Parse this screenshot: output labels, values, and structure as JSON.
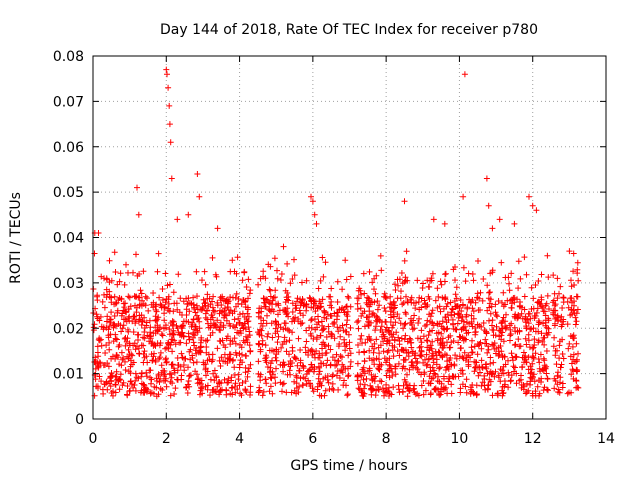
{
  "chart_data": {
    "type": "scatter",
    "title": "Day 144 of 2018, Rate Of TEC Index for receiver p780",
    "xlabel": "GPS time / hours",
    "ylabel": "ROTI / TECUs",
    "xlim": [
      0,
      14
    ],
    "ylim": [
      0,
      0.08
    ],
    "x_ticks": [
      0,
      2,
      4,
      6,
      8,
      10,
      12,
      14
    ],
    "x_tick_labels": [
      "0",
      "2",
      "4",
      "6",
      "8",
      "10",
      "12",
      "14"
    ],
    "y_ticks": [
      0,
      0.01,
      0.02,
      0.03,
      0.04,
      0.05,
      0.06,
      0.07,
      0.08
    ],
    "y_tick_labels": [
      "0",
      "0.01",
      "0.02",
      "0.03",
      "0.04",
      "0.05",
      "0.06",
      "0.07",
      "0.08"
    ],
    "grid": true,
    "marker": "+",
    "color": "#ff0000",
    "gaps_hours": [
      [
        4.3,
        4.5
      ],
      [
        7.05,
        7.2
      ],
      [
        12.45,
        12.55
      ],
      [
        12.85,
        12.95
      ]
    ],
    "data_extent_hours": [
      0.0,
      13.25
    ],
    "series": [
      {
        "name": "ROTI",
        "note": "dense band of points mostly between 0.005 and 0.03 TECU across 0–13.25 h; representative outliers listed",
        "x": [
          0.05,
          0.15,
          0.3,
          0.9,
          1.2,
          1.25,
          2.0,
          2.02,
          2.05,
          2.08,
          2.1,
          2.12,
          2.15,
          2.3,
          2.6,
          2.85,
          2.9,
          3.4,
          5.2,
          5.95,
          6.0,
          6.05,
          6.1,
          8.5,
          9.3,
          9.6,
          10.15,
          10.1,
          10.75,
          10.8,
          10.9,
          11.1,
          11.5,
          11.9,
          12.0,
          12.1,
          12.4,
          13.0,
          13.2
        ],
        "y": [
          0.041,
          0.041,
          0.031,
          0.034,
          0.051,
          0.045,
          0.077,
          0.076,
          0.073,
          0.069,
          0.065,
          0.061,
          0.053,
          0.044,
          0.045,
          0.054,
          0.049,
          0.042,
          0.038,
          0.049,
          0.048,
          0.045,
          0.043,
          0.048,
          0.044,
          0.043,
          0.076,
          0.049,
          0.053,
          0.047,
          0.042,
          0.044,
          0.043,
          0.049,
          0.047,
          0.046,
          0.036,
          0.037,
          0.027
        ]
      }
    ]
  }
}
